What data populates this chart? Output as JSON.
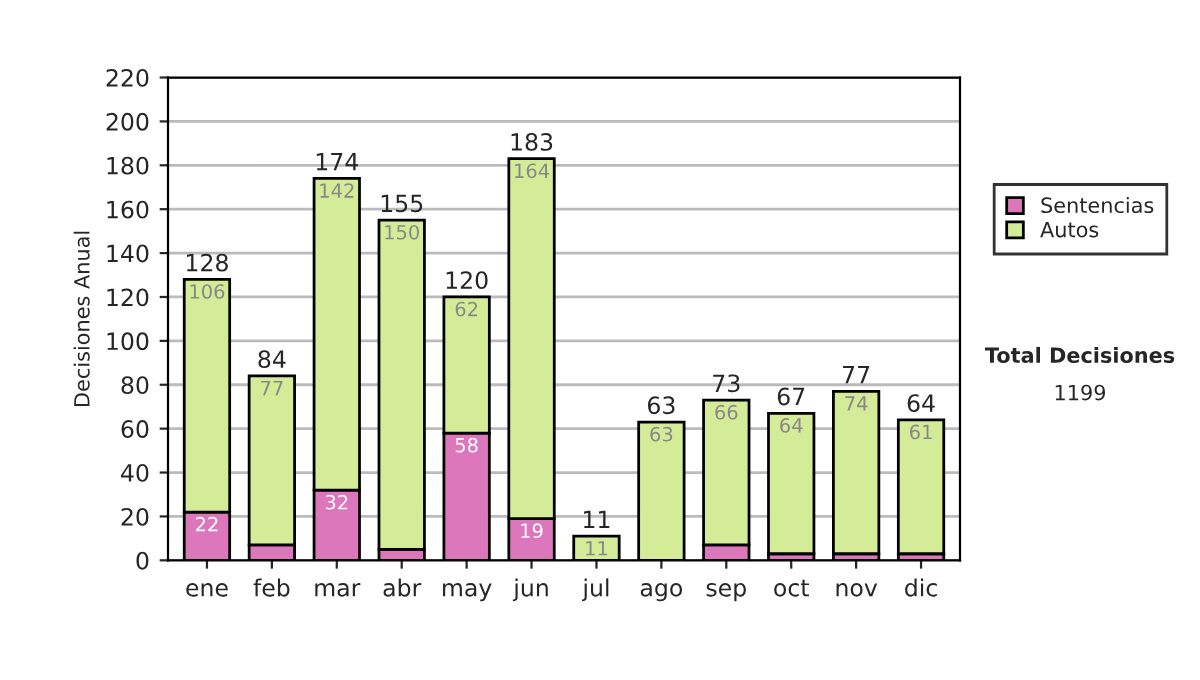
{
  "chart_data": {
    "type": "bar",
    "stacked": true,
    "ylabel": "Decisiones Anual",
    "categories": [
      "ene",
      "feb",
      "mar",
      "abr",
      "may",
      "jun",
      "jul",
      "ago",
      "sep",
      "oct",
      "nov",
      "dic"
    ],
    "series": [
      {
        "name": "Sentencias",
        "color": "#dd77bb",
        "values": [
          22,
          7,
          32,
          5,
          58,
          19,
          0,
          0,
          7,
          3,
          3,
          3
        ],
        "value_labels": [
          "22",
          null,
          "32",
          null,
          "58",
          "19",
          null,
          null,
          null,
          null,
          null,
          null
        ]
      },
      {
        "name": "Autos",
        "color": "#d4eb98",
        "values": [
          106,
          77,
          142,
          150,
          62,
          164,
          11,
          63,
          66,
          64,
          74,
          61
        ],
        "value_labels": [
          "106",
          "77",
          "142",
          "150",
          "62",
          "164",
          "11",
          "63",
          "66",
          "64",
          "74",
          "61"
        ]
      }
    ],
    "totals": [
      "128",
      "84",
      "174",
      "155",
      "120",
      "183",
      "11",
      "63",
      "73",
      "67",
      "77",
      "64"
    ],
    "ylim": [
      0,
      220
    ],
    "yticks": [
      0,
      20,
      40,
      60,
      80,
      100,
      120,
      140,
      160,
      180,
      200,
      220
    ],
    "grid": "y",
    "legend": "right",
    "annotations": [
      "Total Decisiones",
      "1199"
    ]
  }
}
